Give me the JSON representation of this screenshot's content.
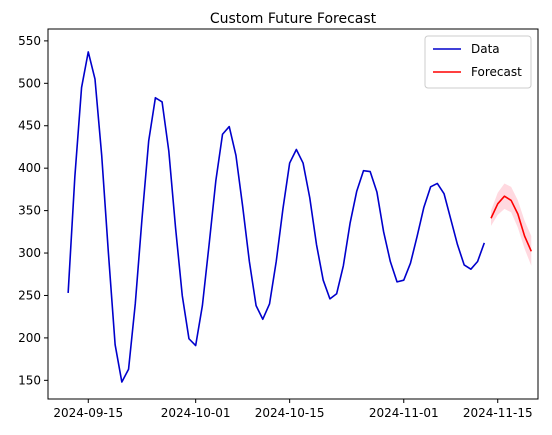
{
  "chart_data": {
    "type": "line",
    "title": "Custom Future Forecast",
    "xlabel": "",
    "ylabel": "",
    "x_ticks": [
      "2024-09-15",
      "2024-10-01",
      "2024-10-15",
      "2024-11-01",
      "2024-11-15"
    ],
    "y_ticks": [
      150,
      200,
      250,
      300,
      350,
      400,
      450,
      500,
      550
    ],
    "xlim": [
      "2024-09-09",
      "2024-11-21"
    ],
    "ylim": [
      128,
      564
    ],
    "grid": false,
    "legend_position": "top-right",
    "series": [
      {
        "name": "Data",
        "color": "#0000cc",
        "start_date": "2024-09-12",
        "values": [
          253,
          390,
          495,
          537,
          505,
          415,
          300,
          192,
          148,
          163,
          240,
          340,
          432,
          483,
          478,
          420,
          330,
          250,
          199,
          191,
          238,
          310,
          385,
          440,
          449,
          415,
          355,
          290,
          238,
          222,
          240,
          290,
          352,
          406,
          422,
          406,
          365,
          310,
          268,
          246,
          252,
          285,
          335,
          373,
          397,
          396,
          372,
          325,
          290,
          266,
          268,
          288,
          320,
          354,
          378,
          382,
          370,
          340,
          310,
          286,
          281,
          290,
          312
        ]
      },
      {
        "name": "Forecast",
        "color": "#ff0000",
        "band_color": "#ffc0cb",
        "start_date": "2024-11-14",
        "values": [
          341,
          358,
          367,
          362,
          346,
          320,
          302
        ],
        "lower": [
          332,
          345,
          352,
          348,
          330,
          305,
          285
        ],
        "upper": [
          350,
          371,
          382,
          378,
          362,
          338,
          320
        ]
      }
    ]
  }
}
